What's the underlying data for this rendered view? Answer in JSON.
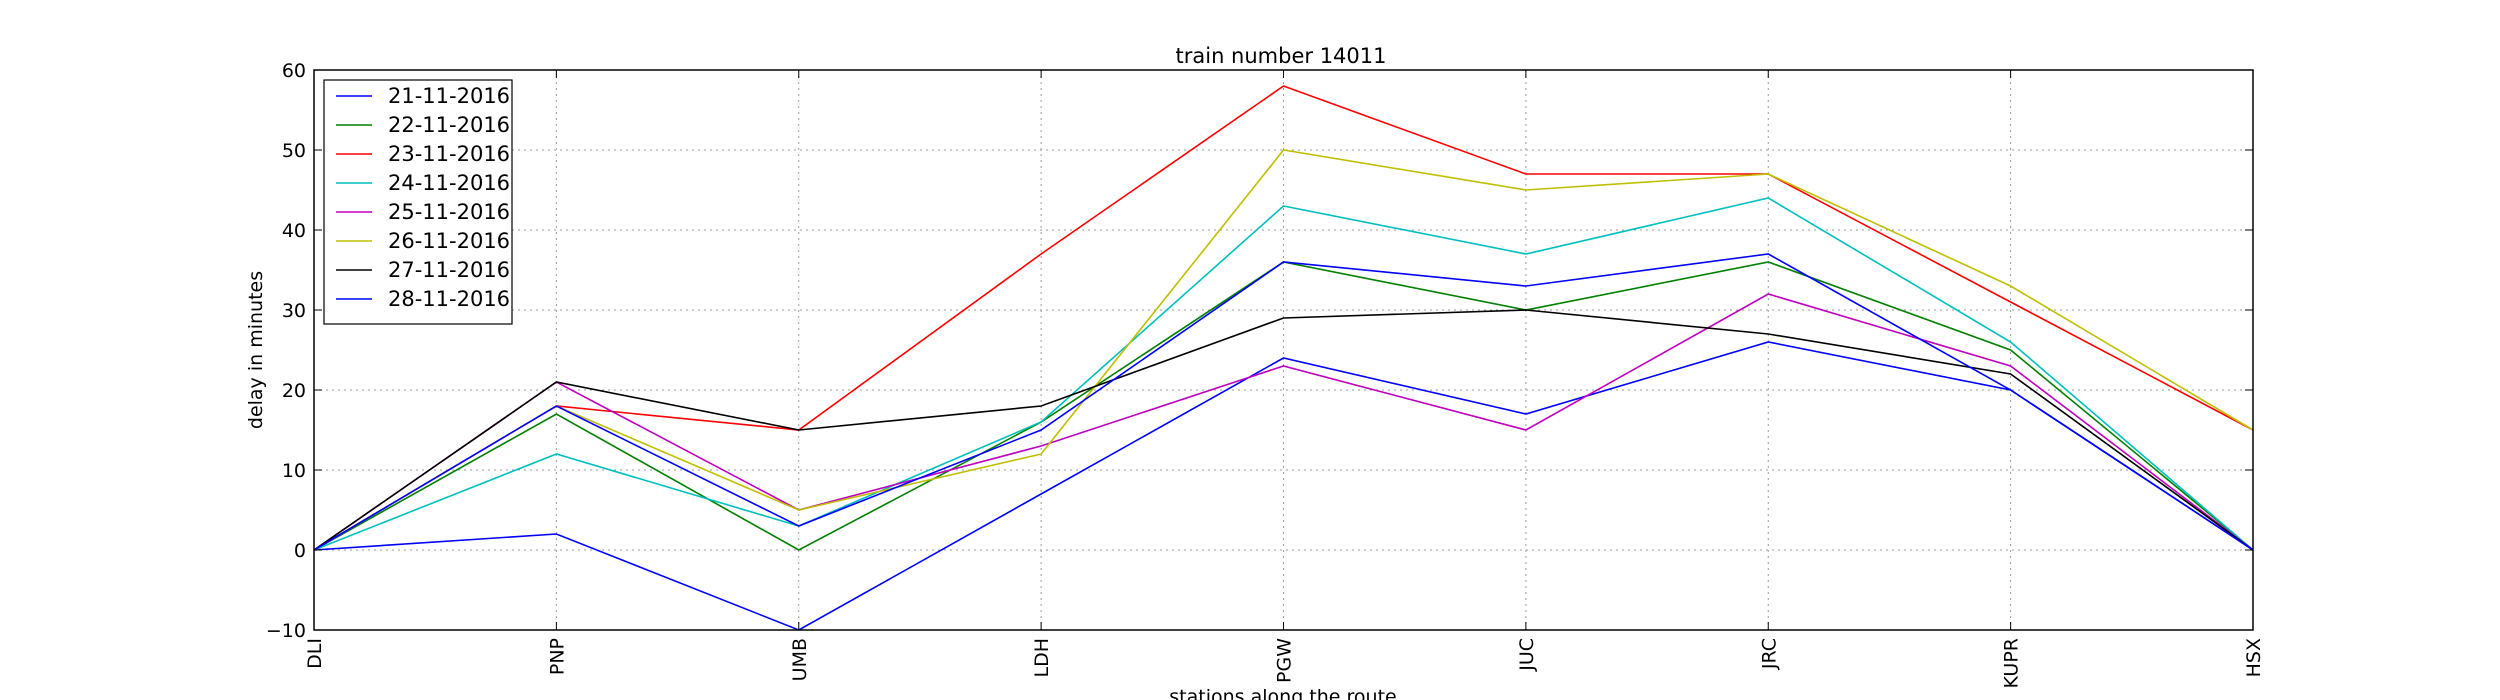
{
  "chart_data": {
    "type": "line",
    "title": "train number 14011",
    "xlabel": "stations along the route",
    "ylabel": "delay in minutes",
    "categories": [
      "DLI",
      "PNP",
      "UMB",
      "LDH",
      "PGW",
      "JUC",
      "JRC",
      "KUPR",
      "HSX"
    ],
    "ylim": [
      -10,
      60
    ],
    "yticks": [
      -10,
      0,
      10,
      20,
      30,
      40,
      50,
      60
    ],
    "grid": true,
    "legend_position": "top-left",
    "series": [
      {
        "name": "21-11-2016",
        "color": "#0000ff",
        "values": [
          0,
          2,
          -10,
          7,
          24,
          17,
          26,
          20,
          0
        ]
      },
      {
        "name": "22-11-2016",
        "color": "#008000",
        "values": [
          0,
          17,
          0,
          16,
          36,
          30,
          36,
          25,
          0
        ]
      },
      {
        "name": "23-11-2016",
        "color": "#ff0000",
        "values": [
          0,
          18,
          15,
          37,
          58,
          47,
          47,
          31,
          15
        ]
      },
      {
        "name": "24-11-2016",
        "color": "#00bfbf",
        "values": [
          0,
          12,
          3,
          16,
          43,
          37,
          44,
          26,
          0
        ]
      },
      {
        "name": "25-11-2016",
        "color": "#bf00bf",
        "values": [
          0,
          21,
          5,
          13,
          23,
          15,
          32,
          23,
          0
        ]
      },
      {
        "name": "26-11-2016",
        "color": "#bfbf00",
        "values": [
          0,
          18,
          5,
          12,
          50,
          45,
          47,
          33,
          15
        ]
      },
      {
        "name": "27-11-2016",
        "color": "#000000",
        "values": [
          0,
          21,
          15,
          18,
          29,
          30,
          27,
          22,
          0
        ]
      },
      {
        "name": "28-11-2016",
        "color": "#0000ff",
        "values": [
          0,
          18,
          3,
          15,
          36,
          33,
          37,
          20,
          0
        ]
      }
    ]
  }
}
